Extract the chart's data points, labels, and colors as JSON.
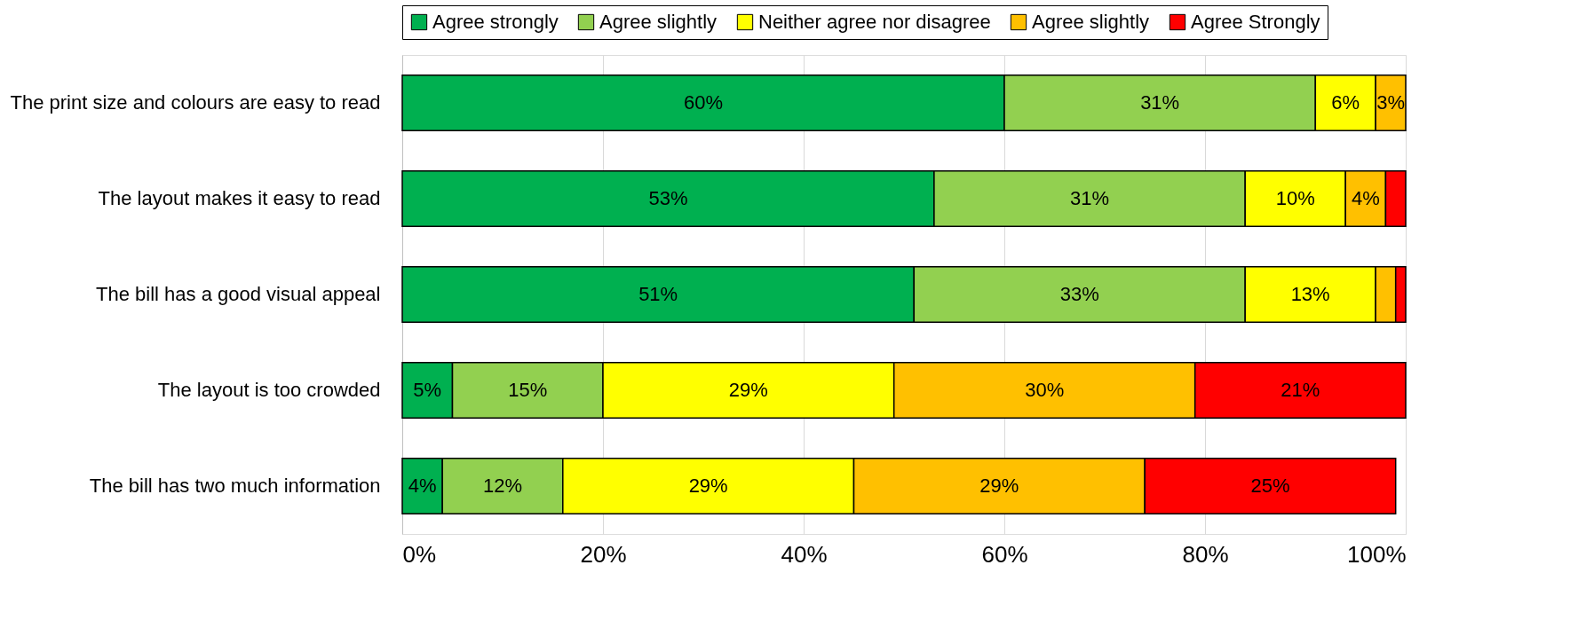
{
  "chart_data": {
    "type": "bar",
    "orientation": "horizontal",
    "stacked": true,
    "categories": [
      "The print size and colours are easy to read",
      "The layout makes it easy to read",
      "The bill has a good visual appeal",
      "The layout is too crowded",
      "The bill has two much information"
    ],
    "series": [
      {
        "name": "Agree strongly",
        "color": "#00b050",
        "values": [
          60,
          53,
          51,
          5,
          4
        ],
        "value_labels": [
          "60%",
          "53%",
          "51%",
          "5%",
          "4%"
        ]
      },
      {
        "name": "Agree slightly",
        "color": "#92d050",
        "values": [
          31,
          31,
          33,
          15,
          12
        ],
        "value_labels": [
          "31%",
          "31%",
          "33%",
          "15%",
          "12%"
        ]
      },
      {
        "name": "Neither agree nor disagree",
        "color": "#ffff00",
        "values": [
          6,
          10,
          13,
          29,
          29
        ],
        "value_labels": [
          "6%",
          "10%",
          "13%",
          "29%",
          "29%"
        ]
      },
      {
        "name": "Agree slightly",
        "color": "#ffc000",
        "values": [
          3,
          4,
          2,
          30,
          29
        ],
        "value_labels": [
          "3%",
          "4%",
          null,
          "30%",
          "29%"
        ]
      },
      {
        "name": "Agree Strongly",
        "color": "#ff0000",
        "values": [
          null,
          2,
          1,
          21,
          25
        ],
        "value_labels": [
          null,
          null,
          null,
          "21%",
          "25%"
        ]
      }
    ],
    "xlim": [
      0,
      100
    ],
    "xticks": [
      {
        "value": 0,
        "label": "0%"
      },
      {
        "value": 20,
        "label": "20%"
      },
      {
        "value": 40,
        "label": "40%"
      },
      {
        "value": 60,
        "label": "60%"
      },
      {
        "value": 80,
        "label": "80%"
      },
      {
        "value": 100,
        "label": "100%"
      }
    ],
    "grid": "x",
    "legend": "top"
  }
}
